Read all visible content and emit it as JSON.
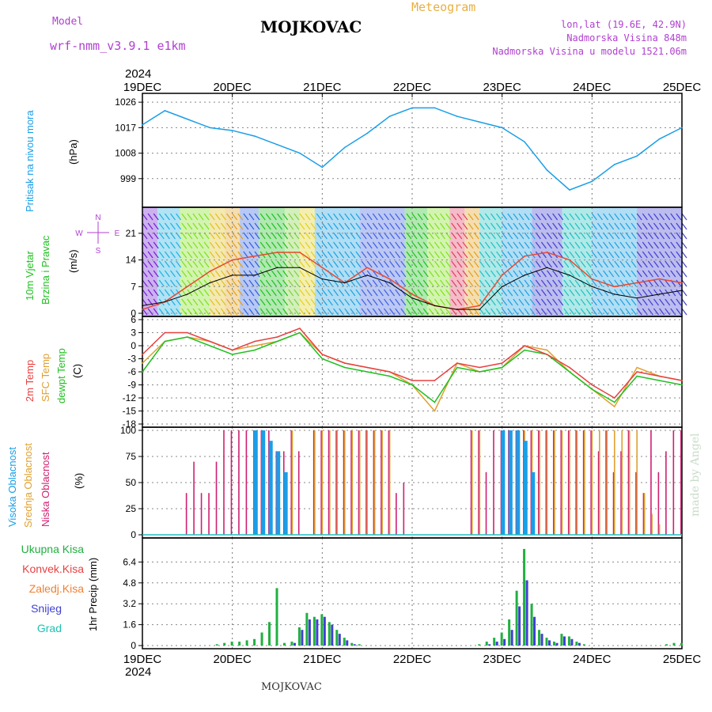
{
  "header": {
    "model_label": "Model",
    "model_name": "wrf-nmm_v3.9.1 e1km",
    "station": "MOJKOVAC",
    "meteogram": "Meteogram",
    "lonlat": "lon,lat (19.6E, 42.9N)",
    "altitude": "Nadmorska Visina 848m",
    "altitude_model": "Nadmorska Visina u modelu 1521.06m"
  },
  "footer": {
    "station": "MOJKOVAC",
    "credit": "made by Angel"
  },
  "colors": {
    "pressure": "#1a9ee8",
    "wind_speed": "#000000",
    "gust": "#e84a30",
    "temp": "#e84040",
    "sfc": "#e0a030",
    "dewpt": "#20c020",
    "high_cloud": "#1a9ee8",
    "mid_cloud": "#e0a030",
    "low_cloud": "#d02070",
    "total_precip": "#20b040",
    "snow": "#4040d0"
  },
  "chart_data": [
    {
      "type": "line",
      "name": "pressure",
      "ylabel": [
        "Pritisak na nivou mora",
        "(hPa)"
      ],
      "ylim": [
        990,
        1028
      ],
      "yticks": [
        999,
        1008,
        1017,
        1026
      ],
      "x_days": [
        "19DEC",
        "20DEC",
        "21DEC",
        "22DEC",
        "23DEC",
        "24DEC",
        "25DEC"
      ],
      "year": "2024",
      "x": [
        0,
        6,
        12,
        18,
        24,
        30,
        36,
        42,
        48,
        54,
        60,
        66,
        72,
        78,
        84,
        90,
        96,
        102,
        108,
        114,
        120,
        126,
        132,
        138,
        144
      ],
      "series": [
        {
          "values": [
            1018,
            1023,
            1020,
            1017,
            1016,
            1014,
            1011,
            1008,
            1003,
            1010,
            1015,
            1021,
            1024,
            1024,
            1021,
            1019,
            1017,
            1012,
            1002,
            995,
            998,
            1004,
            1007,
            1013,
            1017
          ]
        }
      ]
    },
    {
      "type": "line",
      "name": "wind",
      "ylabel": [
        "10m Vjetar",
        "Brzina i Pravac",
        "(m/s)"
      ],
      "ylim": [
        0,
        27
      ],
      "yticks": [
        0,
        7,
        14,
        21
      ],
      "compass": [
        "N",
        "W",
        "S",
        "E"
      ],
      "x": [
        0,
        6,
        12,
        18,
        24,
        30,
        36,
        42,
        48,
        54,
        60,
        66,
        72,
        78,
        84,
        90,
        96,
        102,
        108,
        114,
        120,
        126,
        132,
        138,
        144
      ],
      "series": [
        {
          "values": [
            2,
            3,
            5,
            8,
            10,
            10,
            12,
            12,
            9,
            8,
            10,
            8,
            4,
            2,
            1,
            1,
            7,
            10,
            12,
            10,
            7,
            5,
            4,
            5,
            6
          ]
        },
        {
          "values": [
            1,
            3,
            7,
            11,
            14,
            15,
            16,
            16,
            12,
            8,
            12,
            9,
            5,
            2,
            1,
            2,
            10,
            15,
            16,
            14,
            9,
            7,
            8,
            9,
            8
          ]
        }
      ]
    },
    {
      "type": "line",
      "name": "temperature",
      "ylabel": [
        "2m Temp",
        "SFC Temp",
        "dewpt Temp",
        "(C)"
      ],
      "ylim": [
        -18,
        6
      ],
      "yticks": [
        6,
        3,
        0,
        -3,
        -6,
        -9,
        -12,
        -15,
        -18
      ],
      "x": [
        0,
        6,
        12,
        18,
        24,
        30,
        36,
        42,
        48,
        54,
        60,
        66,
        72,
        78,
        84,
        90,
        96,
        102,
        108,
        114,
        120,
        126,
        132,
        138,
        144
      ],
      "series": [
        {
          "name": "2m Temp",
          "values": [
            -2,
            3,
            3,
            1,
            -1,
            1,
            2,
            4,
            -2,
            -4,
            -5,
            -6,
            -8,
            -8,
            -4,
            -5,
            -4,
            0,
            -2,
            -5,
            -9,
            -12,
            -6,
            -7,
            -8
          ]
        },
        {
          "name": "SFC Temp",
          "values": [
            -4,
            1,
            2,
            1,
            -1,
            0,
            1,
            3,
            -2,
            -4,
            -5,
            -6,
            -9,
            -15,
            -4,
            -6,
            -5,
            0,
            -1,
            -6,
            -10,
            -14,
            -5,
            -7,
            -8
          ]
        },
        {
          "name": "dewpt Temp",
          "values": [
            -6,
            1,
            2,
            0,
            -2,
            -1,
            1,
            3,
            -3,
            -5,
            -6,
            -7,
            -9,
            -13,
            -5,
            -6,
            -5,
            -1,
            -2,
            -6,
            -10,
            -13,
            -7,
            -8,
            -9
          ]
        }
      ]
    },
    {
      "type": "bar",
      "name": "cloud",
      "ylabel": [
        "Visoka Oblacnost",
        "Srednja Oblacnost",
        "Niska Oblacnost",
        "(%)"
      ],
      "ylim": [
        0,
        100
      ],
      "yticks": [
        0,
        25,
        50,
        75,
        100
      ],
      "x": [
        12,
        14,
        16,
        18,
        20,
        22,
        24,
        26,
        28,
        30,
        32,
        34,
        36,
        38,
        40,
        42,
        44,
        46,
        48,
        50,
        52,
        54,
        56,
        58,
        60,
        62,
        64,
        66,
        68,
        70,
        72,
        74,
        76,
        78,
        80,
        82,
        84,
        86,
        88,
        90,
        92,
        94,
        96,
        98,
        100,
        102,
        104,
        106,
        108,
        110,
        112,
        114,
        116,
        118,
        120,
        122,
        124,
        126,
        128,
        130,
        132,
        134,
        136,
        138,
        140,
        142,
        144
      ],
      "series": [
        {
          "name": "Visoka Oblacnost",
          "values": [
            0,
            0,
            0,
            0,
            0,
            0,
            0,
            0,
            0,
            100,
            100,
            90,
            80,
            60,
            0,
            0,
            0,
            0,
            0,
            0,
            0,
            0,
            0,
            0,
            0,
            0,
            0,
            0,
            0,
            0,
            0,
            0,
            0,
            0,
            0,
            0,
            0,
            0,
            0,
            0,
            0,
            0,
            100,
            100,
            100,
            90,
            60,
            0,
            0,
            0,
            0,
            0,
            0,
            0,
            0,
            0,
            0,
            0,
            0,
            0,
            0,
            0,
            0,
            0,
            0,
            0,
            0
          ]
        },
        {
          "name": "Srednja Oblacnost",
          "values": [
            0,
            0,
            0,
            0,
            0,
            0,
            0,
            0,
            0,
            0,
            0,
            0,
            0,
            0,
            100,
            0,
            0,
            100,
            100,
            100,
            100,
            100,
            100,
            100,
            100,
            100,
            100,
            100,
            0,
            0,
            0,
            0,
            0,
            0,
            0,
            0,
            0,
            0,
            100,
            100,
            0,
            0,
            100,
            100,
            100,
            100,
            100,
            100,
            100,
            100,
            100,
            100,
            100,
            100,
            100,
            100,
            100,
            100,
            100,
            100,
            100,
            40,
            20,
            10,
            0,
            0,
            0
          ]
        },
        {
          "name": "Niska Oblacnost",
          "values": [
            40,
            70,
            40,
            40,
            70,
            100,
            100,
            100,
            100,
            100,
            100,
            100,
            80,
            80,
            100,
            80,
            0,
            100,
            100,
            100,
            100,
            100,
            100,
            100,
            100,
            100,
            100,
            100,
            40,
            50,
            0,
            0,
            0,
            0,
            0,
            0,
            0,
            0,
            100,
            100,
            60,
            100,
            100,
            100,
            100,
            100,
            100,
            100,
            100,
            100,
            100,
            100,
            100,
            100,
            100,
            80,
            100,
            60,
            80,
            100,
            60,
            40,
            100,
            60,
            80,
            100,
            100
          ]
        }
      ]
    },
    {
      "type": "bar",
      "name": "precipitation",
      "ylabel": [
        "1hr Precip (mm)"
      ],
      "legend": [
        "Ukupna Kisa",
        "Konvek.Kisa",
        "Zaledj.Kisa",
        "Snijeg",
        "Grad"
      ],
      "ylim": [
        0,
        8
      ],
      "yticks": [
        0,
        1.6,
        3.2,
        4.8,
        6.4
      ],
      "x": [
        20,
        22,
        24,
        26,
        28,
        30,
        32,
        34,
        36,
        38,
        40,
        42,
        44,
        46,
        48,
        50,
        52,
        54,
        56,
        58,
        60,
        62,
        64,
        66,
        68,
        70,
        72,
        74,
        76,
        78,
        80,
        82,
        84,
        86,
        88,
        90,
        92,
        94,
        96,
        98,
        100,
        102,
        104,
        106,
        108,
        110,
        112,
        114,
        116,
        118,
        120,
        122,
        124,
        126,
        128,
        130,
        132,
        134,
        136,
        138,
        140,
        142,
        144
      ],
      "series": [
        {
          "name": "Ukupna Kisa",
          "values": [
            0.1,
            0.2,
            0.3,
            0.3,
            0.4,
            0.5,
            1.0,
            1.8,
            4.4,
            0.2,
            0.3,
            1.4,
            2.5,
            2.2,
            2.4,
            1.8,
            1.2,
            0.6,
            0.2,
            0.1,
            0,
            0,
            0,
            0,
            0,
            0,
            0,
            0,
            0,
            0,
            0,
            0,
            0,
            0,
            0,
            0.1,
            0.3,
            0.6,
            1.0,
            2.0,
            4.2,
            7.4,
            3.2,
            1.2,
            0.6,
            0.3,
            0.9,
            0.7,
            0.3,
            0.1,
            0,
            0,
            0,
            0,
            0,
            0,
            0,
            0,
            0,
            0,
            0.1,
            0.2,
            0.2
          ]
        },
        {
          "name": "Snijeg",
          "values": [
            0,
            0,
            0,
            0,
            0,
            0,
            0,
            0,
            0,
            0,
            0.2,
            1.2,
            2.0,
            2.0,
            2.2,
            1.6,
            0.9,
            0.4,
            0.1,
            0,
            0,
            0,
            0,
            0,
            0,
            0,
            0,
            0,
            0,
            0,
            0,
            0,
            0,
            0,
            0,
            0,
            0.1,
            0.3,
            0.5,
            1.2,
            3.0,
            5.0,
            2.2,
            0.9,
            0.4,
            0.2,
            0.7,
            0.5,
            0.2,
            0,
            0,
            0,
            0,
            0,
            0,
            0,
            0,
            0,
            0,
            0,
            0,
            0,
            0
          ]
        }
      ]
    }
  ]
}
